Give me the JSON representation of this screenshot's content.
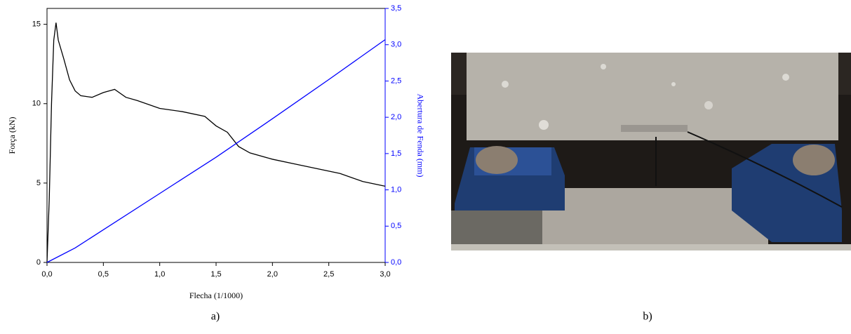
{
  "chart_data": {
    "type": "line",
    "xlabel": "Flecha (1/1000)",
    "ylabel": "Força (kN)",
    "y2label": "Abertura de Fenda (mm)",
    "xlim": [
      0,
      3
    ],
    "ylim": [
      0,
      16
    ],
    "y2lim": [
      0,
      3.5
    ],
    "xticks": [
      {
        "value": 0,
        "label": "0,0"
      },
      {
        "value": 0.5,
        "label": "0,5"
      },
      {
        "value": 1,
        "label": "1,0"
      },
      {
        "value": 1.5,
        "label": "1,5"
      },
      {
        "value": 2,
        "label": "2,0"
      },
      {
        "value": 2.5,
        "label": "2,5"
      },
      {
        "value": 3,
        "label": "3,0"
      }
    ],
    "yticks": [
      0,
      5,
      10,
      15
    ],
    "y2ticks": [
      {
        "value": 0,
        "label": "0,0"
      },
      {
        "value": 0.5,
        "label": "0,5"
      },
      {
        "value": 1,
        "label": "1,0"
      },
      {
        "value": 1.5,
        "label": "1,5"
      },
      {
        "value": 2,
        "label": "2,0"
      },
      {
        "value": 2.5,
        "label": "2,5"
      },
      {
        "value": 3,
        "label": "3,0"
      },
      {
        "value": 3.5,
        "label": "3,5"
      }
    ],
    "y2color": "#0000ff",
    "series": [
      {
        "color": "#000000",
        "x": [
          0,
          0.02,
          0.04,
          0.06,
          0.08,
          0.1,
          0.15,
          0.2,
          0.25,
          0.3,
          0.4,
          0.5,
          0.6,
          0.7,
          0.8,
          1.0,
          1.2,
          1.4,
          1.5,
          1.6,
          1.7,
          1.8,
          2.0,
          2.2,
          2.4,
          2.6,
          2.8,
          3.0
        ],
        "values": [
          0,
          4,
          10,
          14,
          15.1,
          14,
          12.8,
          11.5,
          10.8,
          10.5,
          10.4,
          10.7,
          10.9,
          10.4,
          10.2,
          9.7,
          9.5,
          9.2,
          8.6,
          8.2,
          7.3,
          6.9,
          6.5,
          6.2,
          5.9,
          5.6,
          5.1,
          4.8
        ]
      },
      {
        "color": "#0000ff",
        "axis": "y2",
        "x": [
          0,
          0.25,
          0.5,
          1,
          1.5,
          2,
          2.5,
          3
        ],
        "values": [
          0,
          0.2,
          0.45,
          0.95,
          1.45,
          1.98,
          2.52,
          3.07
        ]
      }
    ]
  },
  "captions": [
    "a)",
    "b)"
  ]
}
